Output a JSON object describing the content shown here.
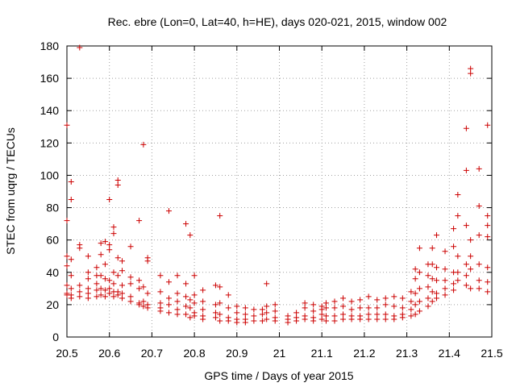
{
  "chart_data": {
    "type": "scatter",
    "title": "Rec. ebre (Lon=0, Lat=40, h=HE), days 020-021, 2015, window 002",
    "xlabel": "GPS time / Days of year 2015",
    "ylabel": "STEC from uqrg / TECUs",
    "xlim": [
      20.5,
      21.5
    ],
    "ylim": [
      0,
      180
    ],
    "xticks": [
      "20.5",
      "20.6",
      "20.7",
      "20.8",
      "20.9",
      "21",
      "21.1",
      "21.2",
      "21.3",
      "21.4",
      "21.5"
    ],
    "yticks": [
      "0",
      "20",
      "40",
      "60",
      "80",
      "100",
      "120",
      "140",
      "160",
      "180"
    ],
    "grid": true,
    "legend": "none",
    "marker": "plus",
    "color": "#cc0000",
    "points": [
      [
        20.5,
        131
      ],
      [
        20.5,
        72
      ],
      [
        20.5,
        50
      ],
      [
        20.5,
        44
      ],
      [
        20.5,
        32
      ],
      [
        20.5,
        27
      ],
      [
        20.5,
        26
      ],
      [
        20.51,
        96
      ],
      [
        20.51,
        85
      ],
      [
        20.51,
        48
      ],
      [
        20.51,
        38
      ],
      [
        20.51,
        30
      ],
      [
        20.51,
        26
      ],
      [
        20.51,
        24
      ],
      [
        20.53,
        179
      ],
      [
        20.53,
        57
      ],
      [
        20.53,
        55
      ],
      [
        20.53,
        32
      ],
      [
        20.53,
        28
      ],
      [
        20.53,
        25
      ],
      [
        20.55,
        50
      ],
      [
        20.55,
        40
      ],
      [
        20.55,
        36
      ],
      [
        20.55,
        30
      ],
      [
        20.55,
        27
      ],
      [
        20.55,
        24
      ],
      [
        20.57,
        43
      ],
      [
        20.57,
        38
      ],
      [
        20.57,
        33
      ],
      [
        20.57,
        29
      ],
      [
        20.57,
        25
      ],
      [
        20.58,
        58
      ],
      [
        20.58,
        51
      ],
      [
        20.58,
        38
      ],
      [
        20.58,
        30
      ],
      [
        20.58,
        26
      ],
      [
        20.59,
        59
      ],
      [
        20.59,
        45
      ],
      [
        20.59,
        36
      ],
      [
        20.59,
        29
      ],
      [
        20.59,
        25
      ],
      [
        20.6,
        85
      ],
      [
        20.6,
        57
      ],
      [
        20.6,
        54
      ],
      [
        20.6,
        35
      ],
      [
        20.6,
        30
      ],
      [
        20.6,
        27
      ],
      [
        20.61,
        68
      ],
      [
        20.61,
        64
      ],
      [
        20.61,
        40
      ],
      [
        20.61,
        33
      ],
      [
        20.61,
        28
      ],
      [
        20.61,
        25
      ],
      [
        20.62,
        97
      ],
      [
        20.62,
        94
      ],
      [
        20.62,
        49
      ],
      [
        20.62,
        38
      ],
      [
        20.62,
        28
      ],
      [
        20.62,
        26
      ],
      [
        20.63,
        47
      ],
      [
        20.63,
        41
      ],
      [
        20.63,
        32
      ],
      [
        20.63,
        27
      ],
      [
        20.63,
        24
      ],
      [
        20.65,
        56
      ],
      [
        20.65,
        37
      ],
      [
        20.65,
        33
      ],
      [
        20.65,
        25
      ],
      [
        20.65,
        22
      ],
      [
        20.67,
        72
      ],
      [
        20.67,
        35
      ],
      [
        20.67,
        30
      ],
      [
        20.67,
        21
      ],
      [
        20.67,
        20
      ],
      [
        20.68,
        119
      ],
      [
        20.68,
        31
      ],
      [
        20.68,
        22
      ],
      [
        20.68,
        19
      ],
      [
        20.69,
        49
      ],
      [
        20.69,
        47
      ],
      [
        20.69,
        27
      ],
      [
        20.69,
        20
      ],
      [
        20.69,
        18
      ],
      [
        20.72,
        38
      ],
      [
        20.72,
        28
      ],
      [
        20.72,
        21
      ],
      [
        20.72,
        18
      ],
      [
        20.72,
        16
      ],
      [
        20.74,
        78
      ],
      [
        20.74,
        34
      ],
      [
        20.74,
        24
      ],
      [
        20.74,
        20
      ],
      [
        20.74,
        15
      ],
      [
        20.76,
        38
      ],
      [
        20.76,
        27
      ],
      [
        20.76,
        22
      ],
      [
        20.76,
        17
      ],
      [
        20.76,
        14
      ],
      [
        20.78,
        70
      ],
      [
        20.78,
        33
      ],
      [
        20.78,
        25
      ],
      [
        20.78,
        19
      ],
      [
        20.78,
        14
      ],
      [
        20.79,
        63
      ],
      [
        20.79,
        23
      ],
      [
        20.79,
        18
      ],
      [
        20.79,
        12
      ],
      [
        20.8,
        38
      ],
      [
        20.8,
        26
      ],
      [
        20.8,
        21
      ],
      [
        20.8,
        15
      ],
      [
        20.8,
        13
      ],
      [
        20.82,
        29
      ],
      [
        20.82,
        22
      ],
      [
        20.82,
        17
      ],
      [
        20.82,
        13
      ],
      [
        20.82,
        11
      ],
      [
        20.85,
        32
      ],
      [
        20.85,
        20
      ],
      [
        20.85,
        15
      ],
      [
        20.85,
        12
      ],
      [
        20.86,
        75
      ],
      [
        20.86,
        31
      ],
      [
        20.86,
        21
      ],
      [
        20.86,
        14
      ],
      [
        20.86,
        10
      ],
      [
        20.88,
        26
      ],
      [
        20.88,
        18
      ],
      [
        20.88,
        12
      ],
      [
        20.88,
        10
      ],
      [
        20.9,
        19
      ],
      [
        20.9,
        15
      ],
      [
        20.9,
        11
      ],
      [
        20.9,
        9
      ],
      [
        20.92,
        18
      ],
      [
        20.92,
        14
      ],
      [
        20.92,
        11
      ],
      [
        20.92,
        9
      ],
      [
        20.94,
        17
      ],
      [
        20.94,
        13
      ],
      [
        20.94,
        10
      ],
      [
        20.96,
        17
      ],
      [
        20.96,
        14
      ],
      [
        20.96,
        10
      ],
      [
        20.97,
        33
      ],
      [
        20.97,
        19
      ],
      [
        20.97,
        15
      ],
      [
        20.97,
        11
      ],
      [
        20.99,
        20
      ],
      [
        20.99,
        16
      ],
      [
        20.99,
        12
      ],
      [
        20.99,
        10
      ],
      [
        21.02,
        13
      ],
      [
        21.02,
        11
      ],
      [
        21.02,
        9
      ],
      [
        21.04,
        15
      ],
      [
        21.04,
        12
      ],
      [
        21.04,
        10
      ],
      [
        21.06,
        21
      ],
      [
        21.06,
        18
      ],
      [
        21.06,
        13
      ],
      [
        21.06,
        11
      ],
      [
        21.08,
        20
      ],
      [
        21.08,
        16
      ],
      [
        21.08,
        12
      ],
      [
        21.08,
        10
      ],
      [
        21.1,
        19
      ],
      [
        21.1,
        17
      ],
      [
        21.1,
        14
      ],
      [
        21.1,
        11
      ],
      [
        21.11,
        21
      ],
      [
        21.11,
        18
      ],
      [
        21.11,
        13
      ],
      [
        21.11,
        10
      ],
      [
        21.13,
        22
      ],
      [
        21.13,
        18
      ],
      [
        21.13,
        13
      ],
      [
        21.13,
        10
      ],
      [
        21.15,
        24
      ],
      [
        21.15,
        19
      ],
      [
        21.15,
        14
      ],
      [
        21.15,
        11
      ],
      [
        21.17,
        22
      ],
      [
        21.17,
        17
      ],
      [
        21.17,
        13
      ],
      [
        21.17,
        11
      ],
      [
        21.19,
        23
      ],
      [
        21.19,
        18
      ],
      [
        21.19,
        13
      ],
      [
        21.19,
        11
      ],
      [
        21.21,
        25
      ],
      [
        21.21,
        18
      ],
      [
        21.21,
        14
      ],
      [
        21.21,
        11
      ],
      [
        21.23,
        23
      ],
      [
        21.23,
        18
      ],
      [
        21.23,
        14
      ],
      [
        21.23,
        11
      ],
      [
        21.25,
        24
      ],
      [
        21.25,
        20
      ],
      [
        21.25,
        14
      ],
      [
        21.25,
        11
      ],
      [
        21.27,
        25
      ],
      [
        21.27,
        19
      ],
      [
        21.27,
        13
      ],
      [
        21.27,
        11
      ],
      [
        21.29,
        24
      ],
      [
        21.29,
        18
      ],
      [
        21.29,
        14
      ],
      [
        21.29,
        12
      ],
      [
        21.31,
        28
      ],
      [
        21.31,
        22
      ],
      [
        21.31,
        17
      ],
      [
        21.31,
        13
      ],
      [
        21.32,
        42
      ],
      [
        21.32,
        36
      ],
      [
        21.32,
        27
      ],
      [
        21.32,
        20
      ],
      [
        21.32,
        14
      ],
      [
        21.33,
        55
      ],
      [
        21.33,
        40
      ],
      [
        21.33,
        30
      ],
      [
        21.33,
        22
      ],
      [
        21.33,
        16
      ],
      [
        21.35,
        45
      ],
      [
        21.35,
        38
      ],
      [
        21.35,
        31
      ],
      [
        21.35,
        24
      ],
      [
        21.35,
        19
      ],
      [
        21.36,
        55
      ],
      [
        21.36,
        45
      ],
      [
        21.36,
        36
      ],
      [
        21.36,
        28
      ],
      [
        21.36,
        22
      ],
      [
        21.37,
        63
      ],
      [
        21.37,
        43
      ],
      [
        21.37,
        35
      ],
      [
        21.37,
        27
      ],
      [
        21.37,
        24
      ],
      [
        21.39,
        53
      ],
      [
        21.39,
        42
      ],
      [
        21.39,
        35
      ],
      [
        21.39,
        30
      ],
      [
        21.39,
        26
      ],
      [
        21.41,
        67
      ],
      [
        21.41,
        56
      ],
      [
        21.41,
        40
      ],
      [
        21.41,
        33
      ],
      [
        21.41,
        29
      ],
      [
        21.42,
        88
      ],
      [
        21.42,
        75
      ],
      [
        21.42,
        50
      ],
      [
        21.42,
        40
      ],
      [
        21.42,
        35
      ],
      [
        21.44,
        129
      ],
      [
        21.44,
        103
      ],
      [
        21.44,
        69
      ],
      [
        21.44,
        45
      ],
      [
        21.44,
        38
      ],
      [
        21.44,
        32
      ],
      [
        21.45,
        166
      ],
      [
        21.45,
        163
      ],
      [
        21.45,
        60
      ],
      [
        21.45,
        50
      ],
      [
        21.45,
        42
      ],
      [
        21.45,
        30
      ],
      [
        21.47,
        104
      ],
      [
        21.47,
        81
      ],
      [
        21.47,
        63
      ],
      [
        21.47,
        45
      ],
      [
        21.47,
        35
      ],
      [
        21.47,
        30
      ],
      [
        21.49,
        131
      ],
      [
        21.49,
        75
      ],
      [
        21.49,
        69
      ],
      [
        21.49,
        62
      ],
      [
        21.49,
        43
      ],
      [
        21.49,
        34
      ],
      [
        21.49,
        28
      ]
    ]
  }
}
